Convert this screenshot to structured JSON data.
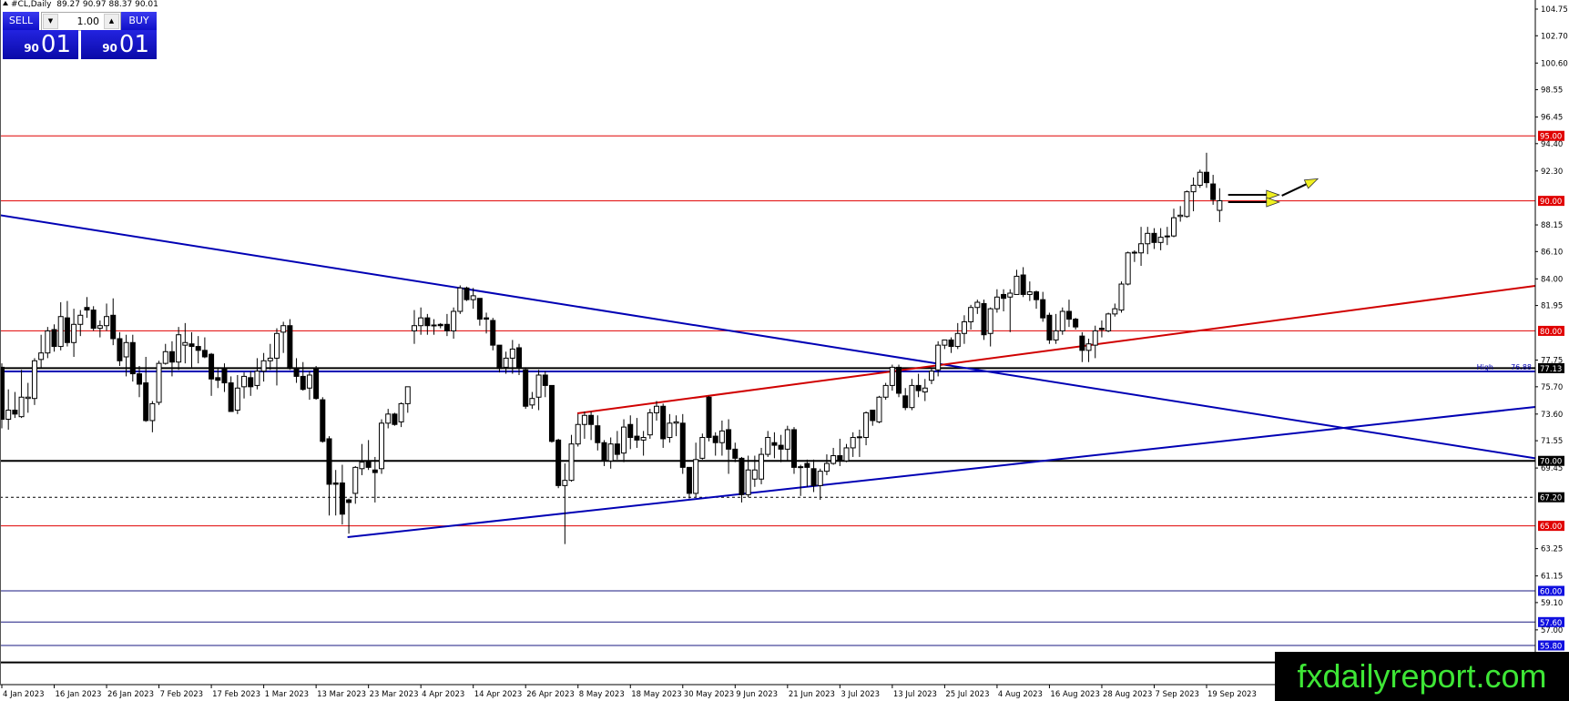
{
  "header": {
    "symbol": "#CL,Daily",
    "ohlc_text": "89.27 90.97 88.37 90.01"
  },
  "trade_panel": {
    "sell_label": "SELL",
    "buy_label": "BUY",
    "lot_value": "1.00",
    "sell_price_small": "90",
    "sell_price_big": "01",
    "buy_price_small": "90",
    "buy_price_big": "01"
  },
  "watermark": "fxdailyreport.com",
  "chart_data": {
    "type": "candlestick",
    "title": "",
    "x_tick_labels": [
      "4 Jan 2023",
      "16 Jan 2023",
      "26 Jan 2023",
      "7 Feb 2023",
      "17 Feb 2023",
      "1 Mar 2023",
      "13 Mar 2023",
      "23 Mar 2023",
      "4 Apr 2023",
      "14 Apr 2023",
      "26 Apr 2023",
      "8 May 2023",
      "18 May 2023",
      "30 May 2023",
      "9 Jun 2023",
      "21 Jun 2023",
      "3 Jul 2023",
      "13 Jul 2023",
      "25 Jul 2023",
      "4 Aug 2023",
      "16 Aug 2023",
      "28 Aug 2023",
      "7 Sep 2023",
      "19 Sep 2023"
    ],
    "y_ticks": [
      "104.75",
      "102.70",
      "100.60",
      "98.55",
      "96.45",
      "94.40",
      "92.30",
      "88.15",
      "86.10",
      "84.00",
      "81.95",
      "77.75",
      "75.70",
      "73.60",
      "71.55",
      "69.45",
      "63.25",
      "61.15",
      "59.10",
      "57.00"
    ],
    "ylim": [
      54.2,
      105.45
    ],
    "grid": false,
    "colors": {
      "bull_body": "#ffffff",
      "bear_body": "#000000",
      "red_level": "#e00000",
      "blue_line": "#0000b4",
      "black_level": "#000000",
      "arrow": "#f0f020"
    },
    "ohlc": [
      [
        77.2,
        77.5,
        72.5,
        73.2
      ],
      [
        73.2,
        75.5,
        72.4,
        73.9
      ],
      [
        73.9,
        75.3,
        73.3,
        73.6
      ],
      [
        73.4,
        77.0,
        73.3,
        74.9
      ],
      [
        74.8,
        76.0,
        73.7,
        74.9
      ],
      [
        74.8,
        77.9,
        74.3,
        77.7
      ],
      [
        77.8,
        79.7,
        77.1,
        78.3
      ],
      [
        78.3,
        80.3,
        77.9,
        80.0
      ],
      [
        80.1,
        80.5,
        78.4,
        78.8
      ],
      [
        78.8,
        82.2,
        78.5,
        81.1
      ],
      [
        81.0,
        82.3,
        78.8,
        79.1
      ],
      [
        79.1,
        81.7,
        78.0,
        80.5
      ],
      [
        80.5,
        81.6,
        79.6,
        81.2
      ],
      [
        81.8,
        82.6,
        81.0,
        81.6
      ],
      [
        81.6,
        81.9,
        80.0,
        80.2
      ],
      [
        80.2,
        80.8,
        79.5,
        80.4
      ],
      [
        80.4,
        82.1,
        80.0,
        81.1
      ],
      [
        81.2,
        82.5,
        78.9,
        79.4
      ],
      [
        79.4,
        79.9,
        77.3,
        77.7
      ],
      [
        78.0,
        79.7,
        76.5,
        79.1
      ],
      [
        79.1,
        79.7,
        76.1,
        76.7
      ],
      [
        76.7,
        77.3,
        74.9,
        75.9
      ],
      [
        76.0,
        78.0,
        73.0,
        73.1
      ],
      [
        73.1,
        74.6,
        72.2,
        74.4
      ],
      [
        74.5,
        77.7,
        74.3,
        77.5
      ],
      [
        77.5,
        79.0,
        77.4,
        78.4
      ],
      [
        78.4,
        79.2,
        76.5,
        77.6
      ],
      [
        77.6,
        80.3,
        77.0,
        79.7
      ],
      [
        78.9,
        80.6,
        77.5,
        79.1
      ],
      [
        79.0,
        79.9,
        77.2,
        78.8
      ],
      [
        78.8,
        79.6,
        77.5,
        78.5
      ],
      [
        78.5,
        79.5,
        77.9,
        78.0
      ],
      [
        78.2,
        78.3,
        75.0,
        76.3
      ],
      [
        76.4,
        77.2,
        75.6,
        76.2
      ],
      [
        77.1,
        77.5,
        75.3,
        76.0
      ],
      [
        76.0,
        76.5,
        73.8,
        73.8
      ],
      [
        73.9,
        76.6,
        73.6,
        75.6
      ],
      [
        75.7,
        76.8,
        74.8,
        76.5
      ],
      [
        76.4,
        76.9,
        75.0,
        75.7
      ],
      [
        75.8,
        77.9,
        75.5,
        76.9
      ],
      [
        76.9,
        78.3,
        76.1,
        77.7
      ],
      [
        77.7,
        79.0,
        77.0,
        77.9
      ],
      [
        77.9,
        80.2,
        75.8,
        79.8
      ],
      [
        79.9,
        80.7,
        78.3,
        80.4
      ],
      [
        80.4,
        80.9,
        77.0,
        77.1
      ],
      [
        77.1,
        77.9,
        76.0,
        76.5
      ],
      [
        76.5,
        77.6,
        75.4,
        75.5
      ],
      [
        75.6,
        76.9,
        74.7,
        76.6
      ],
      [
        77.1,
        77.3,
        74.7,
        74.8
      ],
      [
        74.7,
        74.9,
        71.4,
        71.5
      ],
      [
        71.7,
        71.9,
        65.8,
        68.2
      ],
      [
        68.3,
        69.3,
        65.8,
        68.2
      ],
      [
        68.3,
        69.7,
        65.1,
        65.9
      ],
      [
        67.0,
        67.1,
        64.4,
        66.8
      ],
      [
        67.5,
        69.6,
        66.7,
        69.5
      ],
      [
        69.4,
        71.3,
        68.9,
        69.9
      ],
      [
        70.0,
        71.6,
        69.3,
        69.5
      ],
      [
        69.3,
        70.3,
        66.8,
        69.1
      ],
      [
        69.4,
        73.2,
        69.0,
        72.9
      ],
      [
        72.9,
        74.0,
        72.5,
        73.6
      ],
      [
        73.6,
        73.7,
        72.7,
        72.8
      ],
      [
        73.0,
        74.5,
        72.6,
        74.4
      ],
      [
        74.4,
        75.7,
        73.7,
        75.7
      ],
      [
        80.0,
        81.6,
        79.0,
        80.4
      ],
      [
        80.4,
        81.8,
        79.7,
        81.0
      ],
      [
        81.0,
        81.3,
        79.7,
        80.4
      ],
      [
        80.4,
        80.9,
        79.7,
        80.45
      ],
      [
        80.5,
        80.6,
        80.2,
        80.4
      ],
      [
        80.5,
        81.3,
        79.6,
        80.0
      ],
      [
        80.0,
        81.8,
        79.4,
        81.5
      ],
      [
        81.5,
        83.5,
        81.3,
        83.3
      ],
      [
        83.3,
        83.4,
        82.3,
        82.4
      ],
      [
        82.4,
        83.3,
        81.7,
        82.7
      ],
      [
        82.5,
        82.5,
        80.4,
        80.9
      ],
      [
        81.0,
        81.4,
        79.8,
        80.9
      ],
      [
        80.8,
        81.0,
        78.5,
        78.9
      ],
      [
        78.9,
        78.9,
        76.8,
        77.1
      ],
      [
        77.2,
        78.4,
        76.7,
        77.9
      ],
      [
        77.9,
        79.3,
        76.7,
        78.6
      ],
      [
        78.7,
        79.0,
        76.6,
        77.2
      ],
      [
        77.0,
        77.2,
        74.0,
        74.2
      ],
      [
        74.3,
        75.3,
        74.0,
        74.8
      ],
      [
        74.9,
        77.0,
        73.9,
        76.6
      ],
      [
        76.6,
        76.9,
        74.9,
        75.8
      ],
      [
        75.8,
        75.8,
        71.4,
        71.5
      ],
      [
        71.6,
        71.7,
        67.9,
        68.1
      ],
      [
        68.1,
        69.8,
        63.6,
        68.5
      ],
      [
        68.5,
        72.0,
        68.4,
        71.3
      ],
      [
        71.3,
        73.6,
        71.1,
        72.8
      ],
      [
        72.8,
        73.8,
        71.7,
        73.5
      ],
      [
        73.5,
        73.8,
        71.6,
        72.8
      ],
      [
        72.7,
        73.5,
        70.8,
        71.4
      ],
      [
        71.4,
        71.6,
        69.6,
        70.0
      ],
      [
        70.0,
        71.8,
        69.4,
        71.3
      ],
      [
        71.3,
        72.3,
        70.1,
        70.5
      ],
      [
        70.6,
        73.2,
        69.9,
        72.6
      ],
      [
        72.8,
        73.5,
        70.9,
        71.8
      ],
      [
        71.9,
        73.3,
        71.0,
        71.6
      ],
      [
        71.6,
        72.3,
        70.4,
        71.8
      ],
      [
        72.0,
        74.0,
        71.7,
        73.7
      ],
      [
        73.7,
        74.6,
        73.1,
        74.2
      ],
      [
        74.2,
        74.4,
        71.0,
        71.7
      ],
      [
        71.8,
        73.6,
        71.4,
        72.9
      ],
      [
        72.9,
        73.5,
        71.9,
        73.0
      ],
      [
        72.9,
        73.6,
        69.0,
        69.5
      ],
      [
        69.5,
        69.5,
        67.1,
        67.5
      ],
      [
        67.5,
        71.4,
        67.2,
        70.1
      ],
      [
        70.2,
        72.1,
        70.1,
        71.8
      ],
      [
        74.9,
        75.0,
        71.5,
        71.8
      ],
      [
        71.9,
        72.2,
        70.4,
        71.4
      ],
      [
        71.4,
        73.1,
        70.4,
        72.3
      ],
      [
        72.4,
        73.2,
        69.0,
        70.9
      ],
      [
        70.9,
        71.4,
        69.9,
        70.2
      ],
      [
        70.2,
        70.3,
        66.8,
        67.4
      ],
      [
        67.4,
        70.4,
        67.2,
        69.3
      ],
      [
        68.6,
        70.4,
        68.0,
        69.3
      ],
      [
        68.6,
        71.0,
        68.2,
        70.5
      ],
      [
        70.5,
        72.3,
        70.3,
        71.8
      ],
      [
        71.4,
        72.2,
        70.2,
        71.2
      ],
      [
        71.2,
        72.0,
        69.9,
        70.9
      ],
      [
        70.9,
        72.7,
        70.0,
        72.4
      ],
      [
        72.4,
        72.6,
        69.0,
        69.5
      ],
      [
        69.5,
        69.7,
        67.3,
        69.55
      ],
      [
        69.8,
        70.1,
        68.0,
        69.5
      ],
      [
        69.4,
        70.1,
        67.6,
        68.1
      ],
      [
        68.1,
        69.4,
        67.0,
        69.2
      ],
      [
        69.2,
        70.5,
        68.9,
        69.8
      ],
      [
        69.8,
        71.0,
        69.7,
        70.4
      ],
      [
        70.4,
        71.7,
        69.6,
        70.0
      ],
      [
        70.0,
        71.3,
        69.9,
        71.0
      ],
      [
        71.0,
        72.2,
        70.3,
        71.8
      ],
      [
        71.8,
        72.4,
        70.3,
        71.85
      ],
      [
        71.8,
        73.8,
        71.2,
        73.7
      ],
      [
        73.9,
        73.9,
        72.7,
        73.1
      ],
      [
        73.0,
        75.0,
        72.9,
        74.9
      ],
      [
        74.9,
        76.0,
        74.7,
        75.8
      ],
      [
        75.8,
        77.4,
        75.4,
        77.2
      ],
      [
        77.2,
        77.4,
        74.9,
        75.2
      ],
      [
        75.0,
        75.6,
        73.9,
        74.1
      ],
      [
        74.1,
        76.3,
        73.9,
        75.8
      ],
      [
        75.8,
        76.7,
        74.9,
        75.4
      ],
      [
        75.3,
        76.3,
        74.6,
        75.6
      ],
      [
        76.2,
        77.1,
        75.9,
        76.9
      ],
      [
        77.0,
        79.2,
        76.5,
        78.9
      ],
      [
        78.9,
        79.3,
        78.6,
        79.3
      ],
      [
        79.3,
        79.5,
        78.3,
        78.8
      ],
      [
        78.8,
        80.6,
        78.6,
        79.8
      ],
      [
        79.8,
        81.2,
        79.0,
        80.7
      ],
      [
        80.7,
        82.0,
        80.1,
        81.8
      ],
      [
        81.8,
        82.4,
        81.3,
        82.2
      ],
      [
        82.1,
        82.4,
        79.3,
        79.7
      ],
      [
        79.8,
        81.8,
        78.8,
        81.7
      ],
      [
        81.7,
        83.2,
        81.4,
        82.6
      ],
      [
        82.8,
        83.2,
        81.5,
        82.5
      ],
      [
        82.6,
        83.2,
        79.9,
        82.9
      ],
      [
        82.8,
        84.7,
        82.8,
        84.2
      ],
      [
        84.3,
        84.9,
        82.6,
        82.8
      ],
      [
        82.8,
        83.8,
        82.3,
        83.0
      ],
      [
        83.0,
        83.1,
        81.7,
        82.4
      ],
      [
        82.4,
        83.0,
        80.7,
        81.0
      ],
      [
        81.2,
        81.4,
        79.0,
        79.3
      ],
      [
        79.3,
        81.3,
        79.0,
        80.0
      ],
      [
        80.0,
        81.8,
        79.7,
        81.5
      ],
      [
        81.5,
        82.4,
        80.3,
        80.9
      ],
      [
        80.9,
        81.0,
        80.1,
        80.3
      ],
      [
        79.6,
        79.9,
        77.6,
        78.5
      ],
      [
        78.5,
        79.4,
        77.6,
        79.0
      ],
      [
        78.9,
        80.4,
        77.9,
        80.0
      ],
      [
        80.2,
        80.8,
        79.5,
        80.1
      ],
      [
        80.0,
        81.4,
        79.9,
        81.3
      ],
      [
        81.3,
        82.1,
        81.1,
        81.7
      ],
      [
        81.6,
        83.8,
        81.4,
        83.6
      ],
      [
        83.6,
        86.1,
        83.5,
        86.0
      ],
      [
        86.0,
        86.2,
        85.3,
        86.05
      ],
      [
        86.0,
        88.0,
        85.0,
        86.7
      ],
      [
        86.7,
        88.0,
        85.9,
        87.5
      ],
      [
        87.5,
        87.9,
        86.3,
        86.8
      ],
      [
        86.8,
        87.9,
        86.2,
        87.2
      ],
      [
        87.3,
        88.0,
        86.6,
        87.3
      ],
      [
        87.3,
        89.4,
        87.2,
        88.7
      ],
      [
        88.8,
        89.6,
        88.4,
        88.9
      ],
      [
        88.8,
        90.8,
        88.7,
        90.7
      ],
      [
        90.7,
        91.8,
        89.2,
        91.2
      ],
      [
        91.2,
        92.4,
        91.0,
        92.2
      ],
      [
        92.2,
        93.7,
        91.0,
        91.4
      ],
      [
        91.3,
        92.0,
        89.7,
        90.1
      ],
      [
        89.27,
        90.97,
        88.37,
        90.01
      ]
    ],
    "horizontal_levels": [
      {
        "price": 95.0,
        "label": "95.00",
        "style": "red"
      },
      {
        "price": 90.0,
        "label": "90.00",
        "style": "red"
      },
      {
        "price": 80.0,
        "label": "80.00",
        "style": "red"
      },
      {
        "price": 77.13,
        "label": "77.13",
        "style": "black-thick"
      },
      {
        "price": 76.88,
        "label": "",
        "style": "blue-thick"
      },
      {
        "price": 70.0,
        "label": "70.00",
        "style": "black-thick"
      },
      {
        "price": 67.2,
        "label": "67.20",
        "style": "black-dashed"
      },
      {
        "price": 65.0,
        "label": "65.00",
        "style": "red"
      },
      {
        "price": 60.0,
        "label": "60.00",
        "style": "blue"
      },
      {
        "price": 57.6,
        "label": "57.60",
        "style": "blue"
      },
      {
        "price": 55.8,
        "label": "55.80",
        "style": "blue"
      },
      {
        "price": 54.5,
        "label": "",
        "style": "black-thick"
      }
    ],
    "high_marker": {
      "name": "High",
      "value": "76.88"
    },
    "trendlines": [
      {
        "from": [
          -0.3,
          88.9
        ],
        "to": [
          234.2,
          70.2
        ],
        "color": "blue"
      },
      {
        "from": [
          52.8,
          64.13
        ],
        "to": [
          234.2,
          74.15
        ],
        "color": "blue"
      },
      {
        "from": [
          87.9,
          73.66
        ],
        "to": [
          234.2,
          83.46
        ],
        "color": "red"
      }
    ],
    "arrows": [
      {
        "from": [
          187.3,
          90.46
        ],
        "to": [
          195.1,
          90.46
        ]
      },
      {
        "from": [
          187.3,
          89.9
        ],
        "to": [
          195.1,
          89.9
        ]
      },
      {
        "from": [
          195.5,
          90.4
        ],
        "to": [
          201.0,
          91.7
        ]
      }
    ]
  }
}
